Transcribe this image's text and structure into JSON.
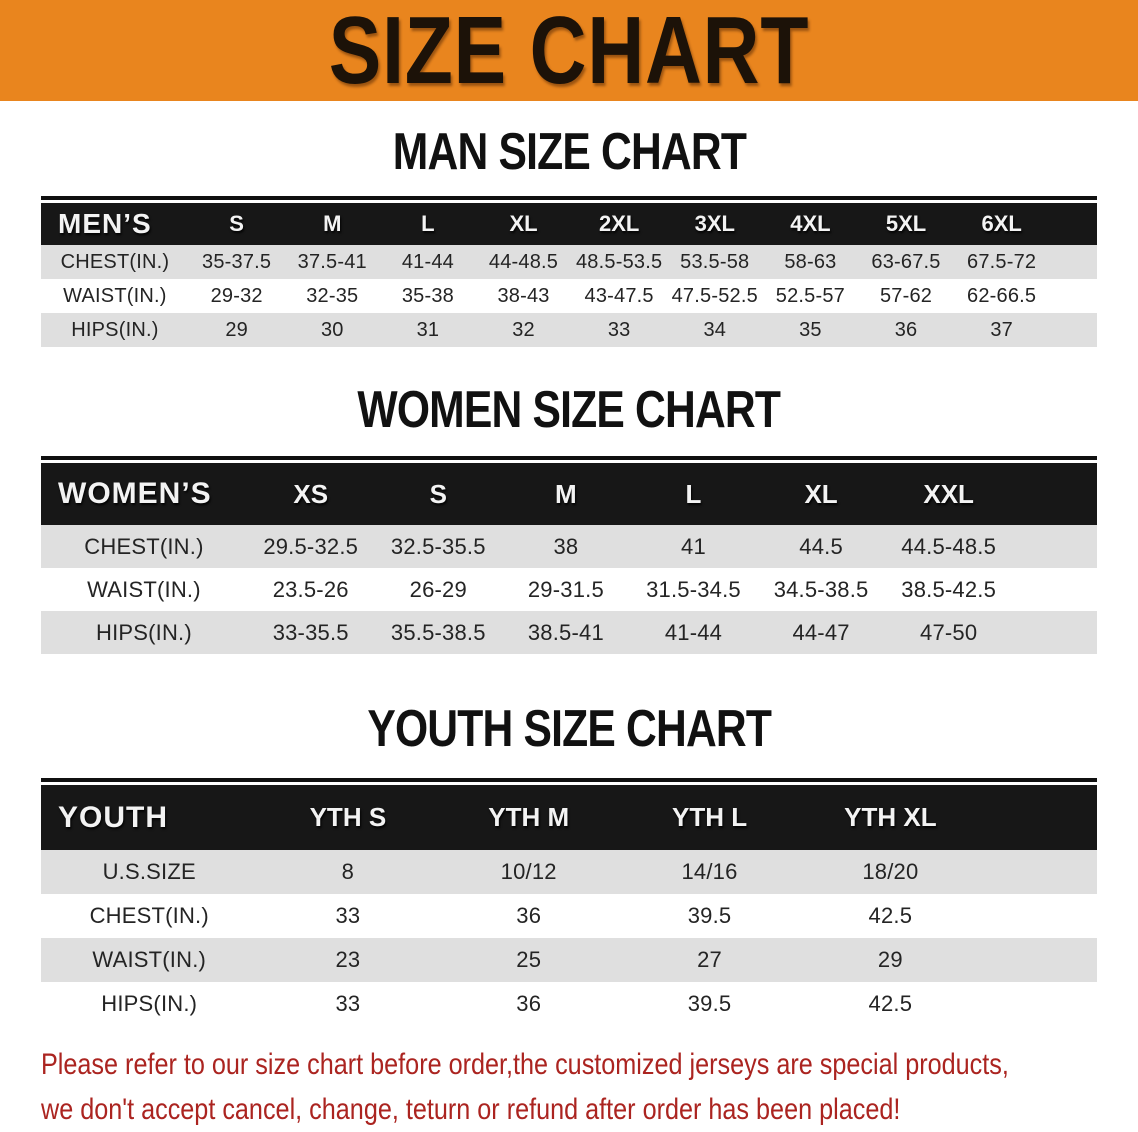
{
  "banner": {
    "title": "SIZE CHART"
  },
  "sections": [
    {
      "id": "men",
      "heading": "MAN SIZE CHART",
      "corner_label": "MEN’S",
      "columns": [
        "S",
        "M",
        "L",
        "XL",
        "2XL",
        "3XL",
        "4XL",
        "5XL",
        "6XL"
      ],
      "rows": [
        {
          "label": "CHEST(IN.)",
          "values": [
            "35-37.5",
            "37.5-41",
            "41-44",
            "44-48.5",
            "48.5-53.5",
            "53.5-58",
            "58-63",
            "63-67.5",
            "67.5-72"
          ]
        },
        {
          "label": "WAIST(IN.)",
          "values": [
            "29-32",
            "32-35",
            "35-38",
            "38-43",
            "43-47.5",
            "47.5-52.5",
            "52.5-57",
            "57-62",
            "62-66.5"
          ]
        },
        {
          "label": "HIPS(IN.)",
          "values": [
            "29",
            "30",
            "31",
            "32",
            "33",
            "34",
            "35",
            "36",
            "37"
          ]
        }
      ]
    },
    {
      "id": "women",
      "heading": "WOMEN SIZE CHART",
      "corner_label": "WOMEN’S",
      "columns": [
        "XS",
        "S",
        "M",
        "L",
        "XL",
        "XXL"
      ],
      "rows": [
        {
          "label": "CHEST(IN.)",
          "values": [
            "29.5-32.5",
            "32.5-35.5",
            "38",
            "41",
            "44.5",
            "44.5-48.5"
          ]
        },
        {
          "label": "WAIST(IN.)",
          "values": [
            "23.5-26",
            "26-29",
            "29-31.5",
            "31.5-34.5",
            "34.5-38.5",
            "38.5-42.5"
          ]
        },
        {
          "label": "HIPS(IN.)",
          "values": [
            "33-35.5",
            "35.5-38.5",
            "38.5-41",
            "41-44",
            "44-47",
            "47-50"
          ]
        }
      ]
    },
    {
      "id": "youth",
      "heading": "YOUTH SIZE CHART",
      "corner_label": "YOUTH",
      "columns": [
        "YTH S",
        "YTH M",
        "YTH L",
        "YTH XL"
      ],
      "rows": [
        {
          "label": "U.S.SIZE",
          "values": [
            "8",
            "10/12",
            "14/16",
            "18/20"
          ]
        },
        {
          "label": "CHEST(IN.)",
          "values": [
            "33",
            "36",
            "39.5",
            "42.5"
          ]
        },
        {
          "label": "WAIST(IN.)",
          "values": [
            "23",
            "25",
            "27",
            "29"
          ]
        },
        {
          "label": "HIPS(IN.)",
          "values": [
            "33",
            "36",
            "39.5",
            "42.5"
          ]
        }
      ]
    }
  ],
  "footer_note": {
    "lines": [
      "Please refer to our size chart before order,the customized jerseys are special products,",
      "we don't accept cancel, change, teturn or refund after order has been placed!"
    ]
  },
  "colors": {
    "banner_bg": "#e9851e",
    "banner_text": "#1c1208",
    "table_header_bg": "#171717",
    "table_header_text": "#f3f3f3",
    "row_stripe": "#dfdfdf",
    "body_text": "#242424",
    "note_text": "#ab2420"
  }
}
